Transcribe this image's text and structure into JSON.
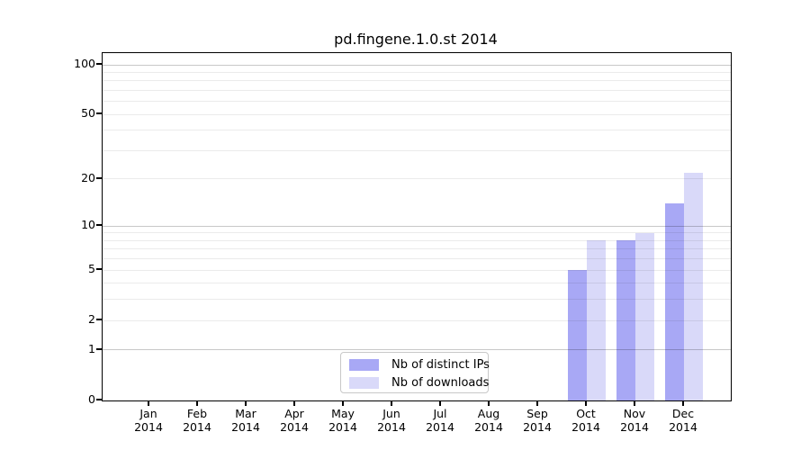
{
  "chart_data": {
    "type": "bar",
    "title": "pd.fingene.1.0.st 2014",
    "categories": [
      "Jan 2014",
      "Feb 2014",
      "Mar 2014",
      "Apr 2014",
      "May 2014",
      "Jun 2014",
      "Jul 2014",
      "Aug 2014",
      "Sep 2014",
      "Oct 2014",
      "Nov 2014",
      "Dec 2014"
    ],
    "series": [
      {
        "name": "Nb of distinct IPs",
        "color": "#a8a8f5",
        "values": [
          0,
          0,
          0,
          0,
          0,
          0,
          0,
          0,
          0,
          5,
          8,
          14
        ]
      },
      {
        "name": "Nb of downloads",
        "color": "#d9d9f9",
        "values": [
          0,
          0,
          0,
          0,
          0,
          0,
          0,
          0,
          0,
          8,
          9,
          22
        ]
      }
    ],
    "xlabel": "",
    "ylabel": "",
    "y_scale": "log10(1+x)",
    "y_ticks": [
      0,
      1,
      2,
      5,
      10,
      20,
      50,
      100
    ],
    "y_minor_ticks": [
      3,
      4,
      6,
      7,
      8,
      9,
      30,
      40,
      60,
      70,
      80,
      90
    ],
    "y_major_gridlines": [
      1,
      10,
      100
    ],
    "ylim": [
      0,
      115
    ],
    "grid": "horizontal",
    "legend_position": "inside-bottom-center"
  }
}
